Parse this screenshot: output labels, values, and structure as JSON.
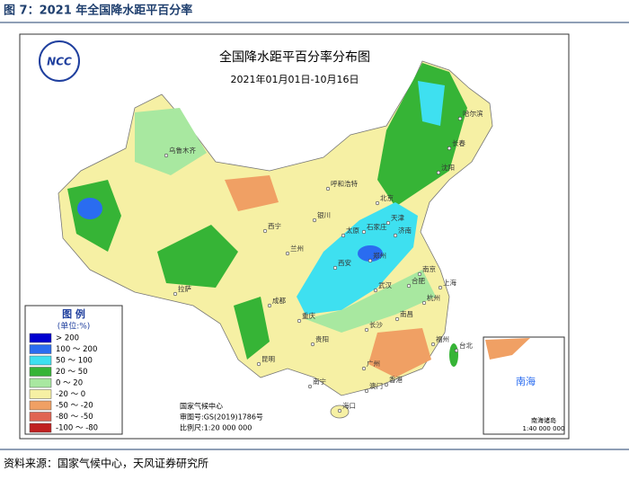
{
  "header": {
    "title": "图 7：2021 年全国降水距平百分率"
  },
  "map": {
    "title": "全国降水距平百分率分布图",
    "subtitle": "2021年01月01日-10月16日",
    "logo": "NCC",
    "credits": [
      "国家气候中心",
      "审图号:GS(2019)1786号",
      "比例尺:1:20 000 000"
    ],
    "inset": {
      "label": "南海",
      "name": "南海诸岛",
      "scale": "1:40 000 000"
    },
    "cities": [
      "乌鲁木齐",
      "呼和浩特",
      "哈尔滨",
      "长春",
      "沈阳",
      "北京",
      "天津",
      "石家庄",
      "太原",
      "济南",
      "银川",
      "西宁",
      "兰州",
      "西安",
      "郑州",
      "拉萨",
      "成都",
      "重庆",
      "武汉",
      "合肥",
      "南京",
      "上海",
      "杭州",
      "长沙",
      "南昌",
      "福州",
      "台北",
      "贵阳",
      "昆明",
      "南宁",
      "广州",
      "香港",
      "澳门",
      "海口"
    ]
  },
  "legend": {
    "title": "图 例",
    "unit": "(单位:%)",
    "items": [
      {
        "label": "> 200",
        "color": "#0000d0"
      },
      {
        "label": "100 ～ 200",
        "color": "#2a6cf0"
      },
      {
        "label": "50 ～ 100",
        "color": "#3ee0f0"
      },
      {
        "label": "20 ～ 50",
        "color": "#36b436"
      },
      {
        "label": "0 ～ 20",
        "color": "#a8e8a0"
      },
      {
        "label": "-20 ～ 0",
        "color": "#f6f0a4"
      },
      {
        "label": "-50 ～ -20",
        "color": "#f0a064"
      },
      {
        "label": "-80 ～ -50",
        "color": "#e06452"
      },
      {
        "label": "-100 ～ -80",
        "color": "#c02020"
      }
    ]
  },
  "footer": {
    "source": "资料来源：国家气候中心，天风证券研究所"
  }
}
